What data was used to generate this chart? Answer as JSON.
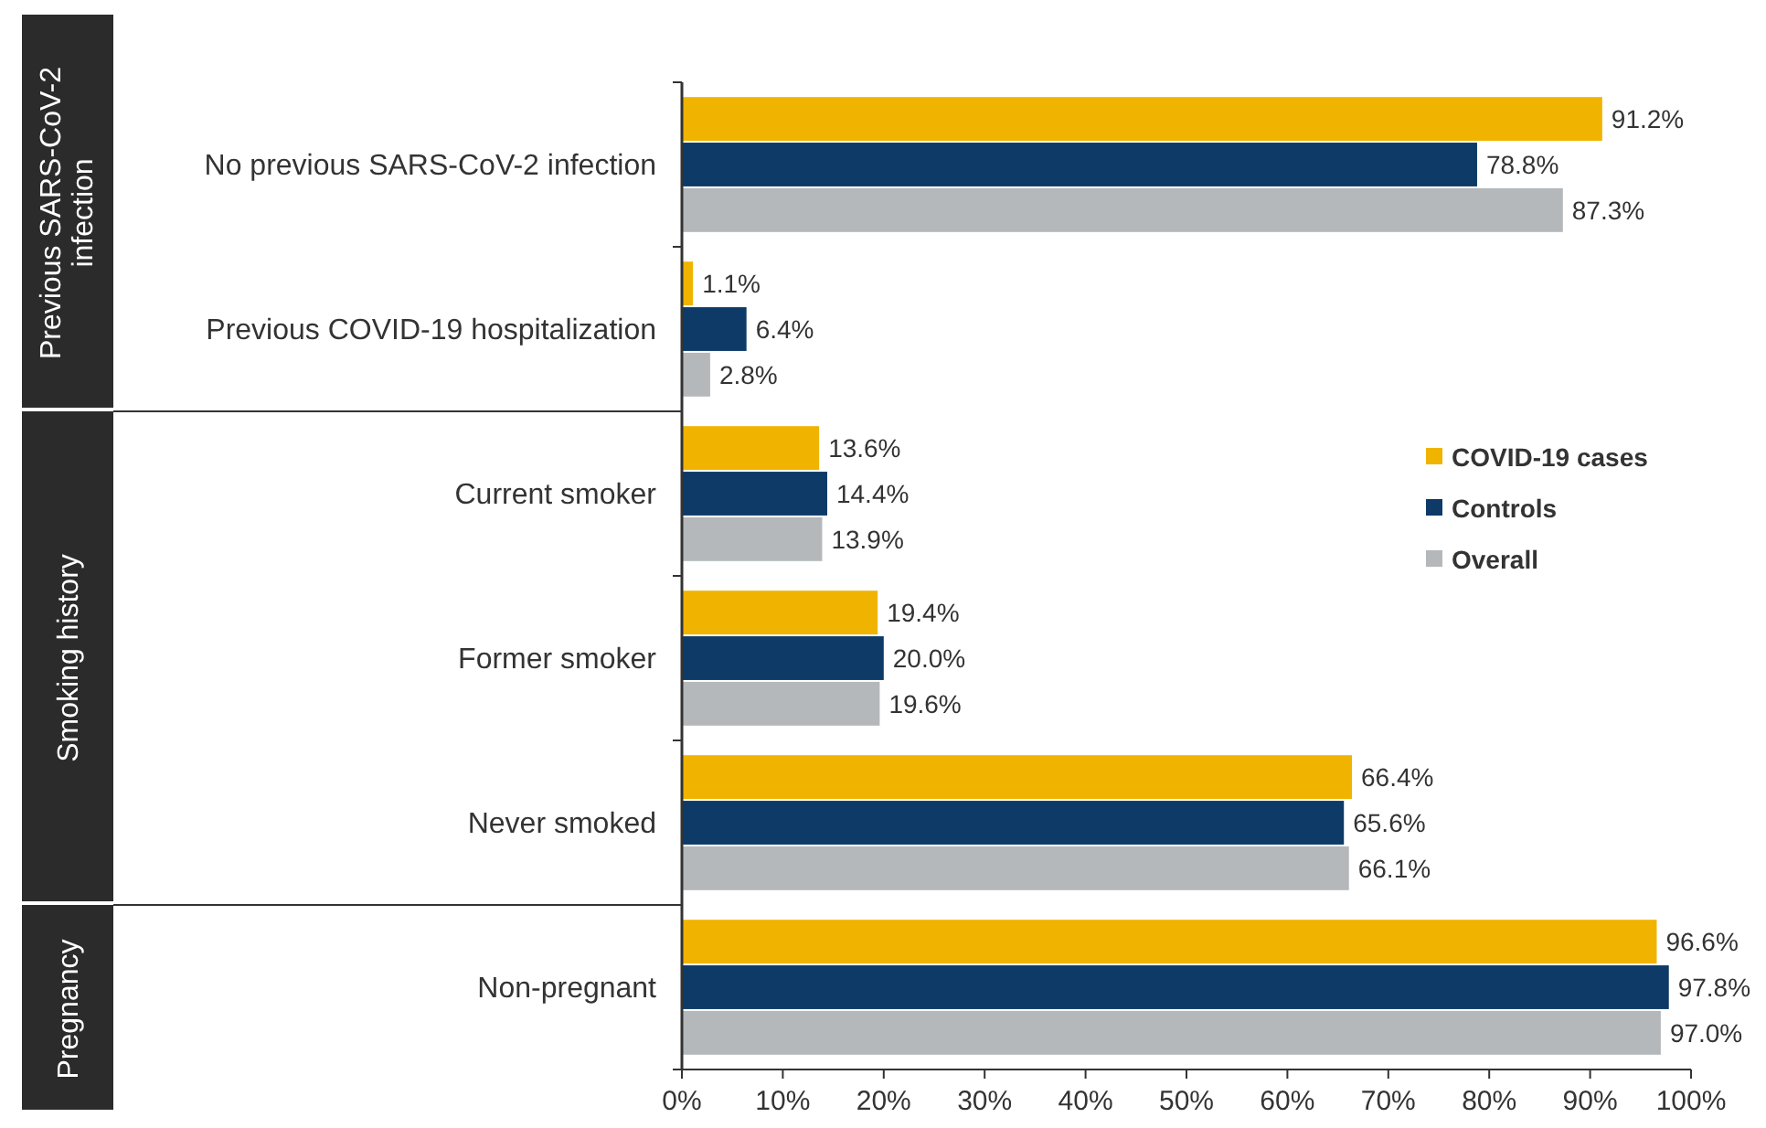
{
  "chart_data": {
    "type": "bar",
    "orientation": "horizontal",
    "categories": [
      "No previous SARS-CoV-2 infection",
      "Previous COVID-19 hospitalization",
      "Current smoker",
      "Former smoker",
      "Never smoked",
      "Non-pregnant"
    ],
    "series": [
      {
        "name": "COVID-19 cases",
        "color": "#f0b400",
        "values": [
          91.2,
          1.1,
          13.6,
          19.4,
          66.4,
          96.6
        ],
        "value_labels": [
          "91.2%",
          "1.1%",
          "13.6%",
          "19.4%",
          "66.4%",
          "96.6%"
        ]
      },
      {
        "name": "Controls",
        "color": "#0d3a66",
        "values": [
          78.8,
          6.4,
          14.4,
          20.0,
          65.6,
          97.8
        ],
        "value_labels": [
          "78.8%",
          "6.4%",
          "14.4%",
          "20.0%",
          "65.6%",
          "97.8%"
        ]
      },
      {
        "name": "Overall",
        "color": "#b4b8bb",
        "values": [
          87.3,
          2.8,
          13.9,
          19.6,
          66.1,
          97.0
        ],
        "value_labels": [
          "87.3%",
          "2.8%",
          "13.9%",
          "19.6%",
          "66.1%",
          "97.0%"
        ]
      }
    ],
    "xlim": [
      0,
      100
    ],
    "xticks": [
      {
        "value": 0,
        "label": "0%"
      },
      {
        "value": 10,
        "label": "10%"
      },
      {
        "value": 20,
        "label": "20%"
      },
      {
        "value": 30,
        "label": "30%"
      },
      {
        "value": 40,
        "label": "40%"
      },
      {
        "value": 50,
        "label": "50%"
      },
      {
        "value": 60,
        "label": "60%"
      },
      {
        "value": 70,
        "label": "70%"
      },
      {
        "value": 80,
        "label": "80%"
      },
      {
        "value": 90,
        "label": "90%"
      },
      {
        "value": 100,
        "label": "100%"
      }
    ],
    "annotations": [
      "Previous SARS-CoV-2 infection",
      "Smoking history",
      "Pregnancy"
    ],
    "legend": "right",
    "grid": false
  }
}
